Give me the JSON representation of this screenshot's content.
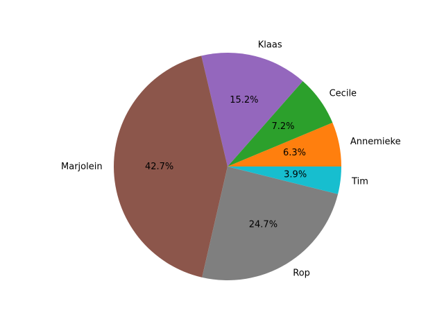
{
  "chart_data": {
    "type": "pie",
    "title": "",
    "labels": [
      "Annemieke",
      "Cecile",
      "Klaas",
      "Marjolein",
      "Rop",
      "Tim"
    ],
    "values": [
      6.3,
      7.2,
      15.2,
      42.7,
      24.7,
      3.9
    ],
    "percent_labels": [
      "6.3%",
      "7.2%",
      "15.2%",
      "42.7%",
      "24.7%",
      "3.9%"
    ],
    "colors": [
      "#ff7f0e",
      "#2ca02c",
      "#9467bd",
      "#8c564b",
      "#7f7f7f",
      "#17becf"
    ],
    "start_angle_deg": 0,
    "direction": "counterclockwise",
    "legend": "none"
  }
}
